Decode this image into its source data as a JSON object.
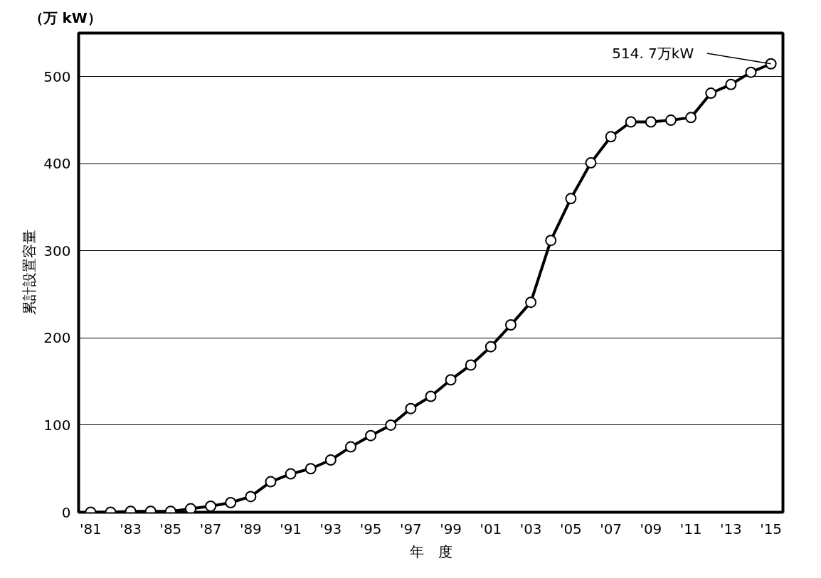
{
  "chart_data": {
    "type": "line",
    "xlabel": "年　度",
    "ylabel": "累計設置容量",
    "annotations": [
      "（万 kW）",
      {
        "text": "514. 7万kW",
        "x": 2015,
        "y": 514.7
      }
    ],
    "x": [
      1981,
      1982,
      1983,
      1984,
      1985,
      1986,
      1987,
      1988,
      1989,
      1990,
      1991,
      1992,
      1993,
      1994,
      1995,
      1996,
      1997,
      1998,
      1999,
      2000,
      2001,
      2002,
      2003,
      2004,
      2005,
      2006,
      2007,
      2008,
      2009,
      2010,
      2011,
      2012,
      2013,
      2014,
      2015
    ],
    "series": [
      {
        "color": "#000000",
        "values": [
          0,
          0,
          1,
          1,
          1,
          4,
          7,
          11,
          18,
          35,
          44,
          50,
          60,
          75,
          88,
          100,
          119,
          133,
          152,
          169,
          190,
          215,
          241,
          312,
          360,
          401,
          431,
          448,
          448,
          450,
          453,
          481,
          491,
          505,
          514.7
        ]
      }
    ],
    "xlim": [
      1980.4,
      2015.6
    ],
    "xticks": [
      {
        "value": 1981,
        "label": "'81"
      },
      {
        "value": 1983,
        "label": "'83"
      },
      {
        "value": 1985,
        "label": "'85"
      },
      {
        "value": 1987,
        "label": "'87"
      },
      {
        "value": 1989,
        "label": "'89"
      },
      {
        "value": 1991,
        "label": "'91"
      },
      {
        "value": 1993,
        "label": "'93"
      },
      {
        "value": 1995,
        "label": "'95"
      },
      {
        "value": 1997,
        "label": "'97"
      },
      {
        "value": 1999,
        "label": "'99"
      },
      {
        "value": 2001,
        "label": "'01"
      },
      {
        "value": 2003,
        "label": "'03"
      },
      {
        "value": 2005,
        "label": "'05"
      },
      {
        "value": 2007,
        "label": "'07"
      },
      {
        "value": 2009,
        "label": "'09"
      },
      {
        "value": 2011,
        "label": "'11"
      },
      {
        "value": 2013,
        "label": "'13"
      },
      {
        "value": 2015,
        "label": "'15"
      }
    ],
    "ylim": [
      0,
      550
    ],
    "yticks": [
      0,
      100,
      200,
      300,
      400,
      500
    ],
    "grid": "y",
    "marker": "circle",
    "line_style": "solid"
  }
}
